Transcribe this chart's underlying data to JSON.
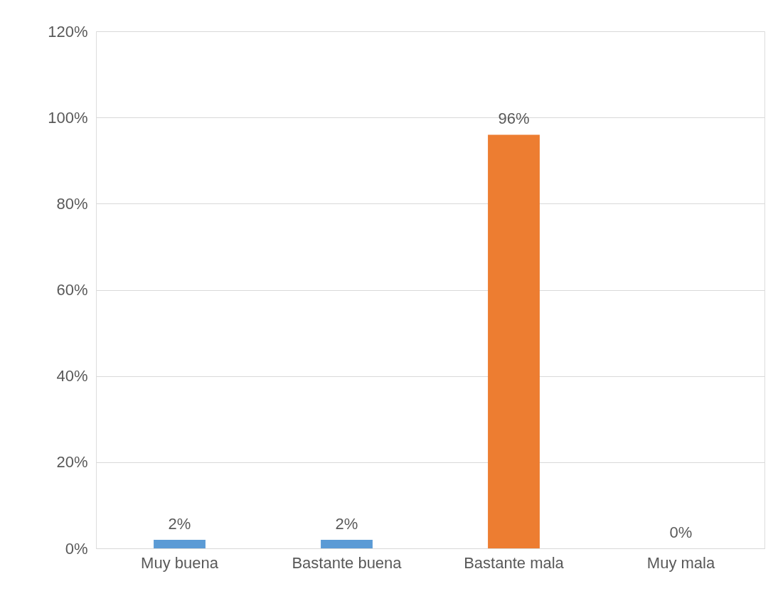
{
  "chart_data": {
    "type": "bar",
    "categories": [
      "Muy buena",
      "Bastante buena",
      "Bastante mala",
      "Muy mala"
    ],
    "values": [
      2,
      2,
      96,
      0
    ],
    "colors": [
      "#5b9bd5",
      "#5b9bd5",
      "#ed7d31",
      "#5b9bd5"
    ],
    "value_labels": [
      "2%",
      "2%",
      "96%",
      "0%"
    ],
    "ylim": [
      0,
      120
    ],
    "yticks": [
      {
        "value": 0,
        "label": "0%"
      },
      {
        "value": 20,
        "label": "20%"
      },
      {
        "value": 40,
        "label": "40%"
      },
      {
        "value": 60,
        "label": "60%"
      },
      {
        "value": 80,
        "label": "80%"
      },
      {
        "value": 100,
        "label": "100%"
      },
      {
        "value": 120,
        "label": "120%"
      }
    ],
    "grid": "y"
  }
}
